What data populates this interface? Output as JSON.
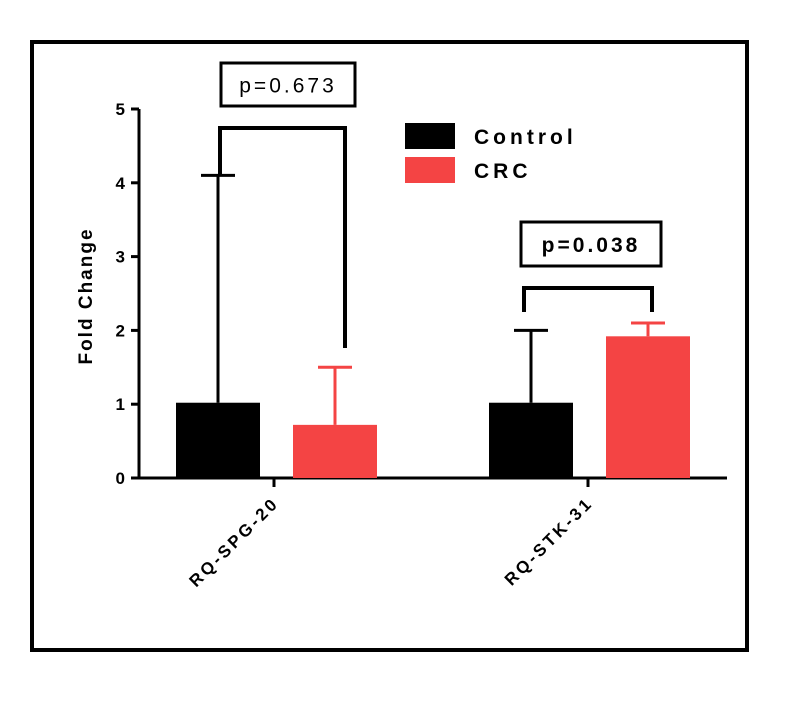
{
  "chart_data": {
    "type": "bar",
    "title": "",
    "xlabel": "",
    "ylabel": "Fold Change",
    "ylim": [
      0,
      5
    ],
    "yticks": [
      0,
      1,
      2,
      3,
      4,
      5
    ],
    "categories": [
      "RQ-SPG-20",
      "RQ-STK-31"
    ],
    "series": [
      {
        "name": "Control",
        "color": "#000000",
        "values": [
          1.02,
          1.02
        ],
        "error": [
          3.08,
          0.98
        ]
      },
      {
        "name": "CRC",
        "color": "#f44444",
        "values": [
          0.72,
          1.92
        ],
        "error": [
          0.78,
          0.18
        ]
      }
    ],
    "legend_position": "top-right",
    "grid": false,
    "annotations": [
      {
        "category": "RQ-SPG-20",
        "text": "p=0.673",
        "bold": false
      },
      {
        "category": "RQ-STK-31",
        "text": "p=0.038",
        "bold": true
      }
    ]
  }
}
